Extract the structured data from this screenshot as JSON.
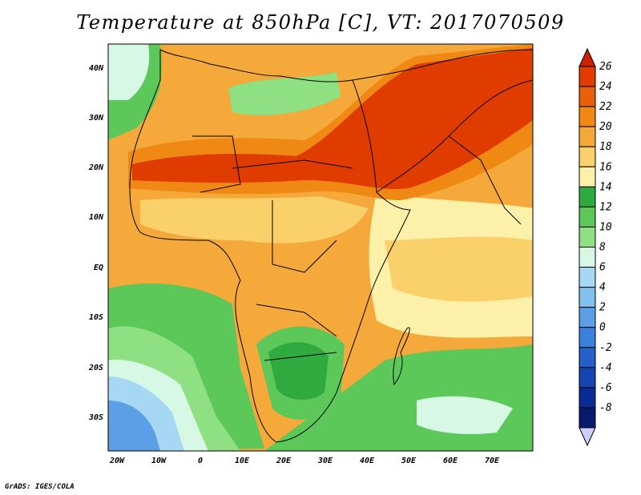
{
  "title": "Temperature at 850hPa [C], VT: 2017070509",
  "credit": "GrADS: IGES/COLA",
  "map": {
    "lon_labels": [
      "20W",
      "10W",
      "0",
      "10E",
      "20E",
      "30E",
      "40E",
      "50E",
      "60E",
      "70E"
    ],
    "lat_labels": [
      "40N",
      "30N",
      "20N",
      "10N",
      "EQ",
      "10S",
      "20S",
      "30S"
    ]
  },
  "colorbar": {
    "labels": [
      "26",
      "24",
      "22",
      "20",
      "18",
      "16",
      "14",
      "12",
      "10",
      "8",
      "6",
      "4",
      "2",
      "0",
      "-2",
      "-4",
      "-6",
      "-8"
    ],
    "colors": [
      "#e03c00",
      "#e8600a",
      "#f08814",
      "#f4a93a",
      "#f9d06a",
      "#fdf0a8",
      "#2faa3e",
      "#5cc85a",
      "#8fe082",
      "#d8f8e6",
      "#a6d8f4",
      "#82c0ee",
      "#5c9fe6",
      "#3b80dc",
      "#2560c9",
      "#1445b3",
      "#0b2b94",
      "#061a6e"
    ],
    "top_arrow_color": "#cc2000",
    "bottom_arrow_color": "#cfcfff"
  }
}
